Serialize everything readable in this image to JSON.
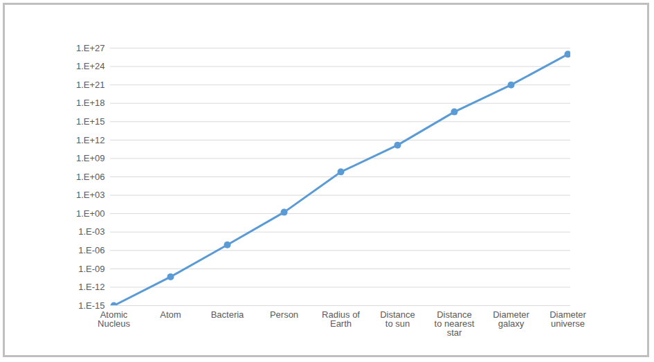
{
  "chart_data": {
    "type": "line",
    "categories": [
      "Atomic Nucleus",
      "Atom",
      "Bacteria",
      "Person",
      "Radius of Earth",
      "Distance to sun",
      "Distance to nearest star",
      "Diameter galaxy",
      "Diameter universe"
    ],
    "values": [
      1e-15,
      5e-11,
      8e-06,
      1.7,
      6400000.0,
      150000000000.0,
      4e+16,
      1e+21,
      1e+26
    ],
    "color": "#5b9bd5",
    "marker": "circle",
    "log": "y",
    "grid": true,
    "ylim": [
      1e-15,
      1e+27
    ],
    "yticks": [
      {
        "value": 1e-15,
        "label": "1.E-15"
      },
      {
        "value": 1e-12,
        "label": "1.E-12"
      },
      {
        "value": 1e-09,
        "label": "1.E-09"
      },
      {
        "value": 1e-06,
        "label": "1.E-06"
      },
      {
        "value": 0.001,
        "label": "1.E-03"
      },
      {
        "value": 1,
        "label": "1.E+00"
      },
      {
        "value": 1000.0,
        "label": "1.E+03"
      },
      {
        "value": 1000000.0,
        "label": "1.E+06"
      },
      {
        "value": 1000000000.0,
        "label": "1.E+09"
      },
      {
        "value": 1000000000000.0,
        "label": "1.E+12"
      },
      {
        "value": 1000000000000000.0,
        "label": "1.E+15"
      },
      {
        "value": 1e+18,
        "label": "1.E+18"
      },
      {
        "value": 1e+21,
        "label": "1.E+21"
      },
      {
        "value": 1e+24,
        "label": "1.E+24"
      },
      {
        "value": 1e+27,
        "label": "1.E+27"
      }
    ]
  }
}
